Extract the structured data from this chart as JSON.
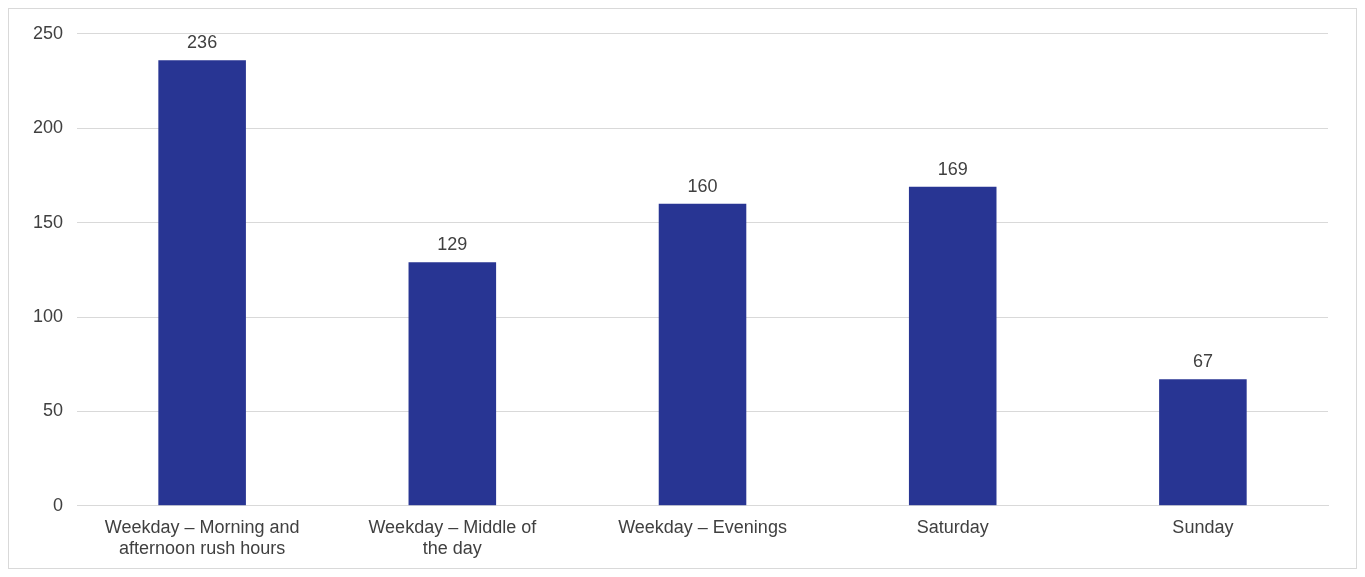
{
  "chart_data": {
    "type": "bar",
    "categories": [
      "Weekday – Morning and afternoon rush hours",
      "Weekday – Middle of the day",
      "Weekday – Evenings",
      "Saturday",
      "Sunday"
    ],
    "values": [
      236,
      129,
      160,
      169,
      67
    ],
    "color": "#283593",
    "ylim": [
      0,
      250
    ],
    "yticks": [
      0,
      50,
      100,
      150,
      200,
      250
    ],
    "grid": "y",
    "data_labels": true,
    "legend": false
  }
}
